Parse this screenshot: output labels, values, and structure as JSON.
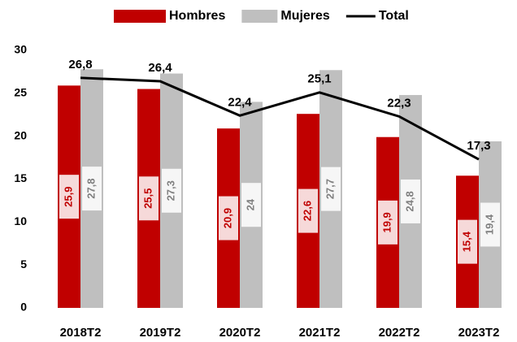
{
  "chart_data": {
    "type": "bar",
    "categories": [
      "2018T2",
      "2019T2",
      "2020T2",
      "2021T2",
      "2022T2",
      "2023T2"
    ],
    "series": [
      {
        "name": "Hombres",
        "type": "bar",
        "color": "#c00000",
        "label_color": "#c00000",
        "values": [
          25.9,
          25.5,
          20.9,
          22.6,
          19.9,
          15.4
        ],
        "value_labels": [
          "25,9",
          "25,5",
          "20,9",
          "22,6",
          "19,9",
          "15,4"
        ]
      },
      {
        "name": "Mujeres",
        "type": "bar",
        "color": "#bfbfbf",
        "label_color": "#808080",
        "values": [
          27.8,
          27.3,
          24,
          27.7,
          24.8,
          19.4
        ],
        "value_labels": [
          "27,8",
          "27,3",
          "24",
          "27,7",
          "24,8",
          "19,4"
        ]
      },
      {
        "name": "Total",
        "type": "line",
        "color": "#000000",
        "label_color": "#000000",
        "values": [
          26.8,
          26.4,
          22.4,
          25.1,
          22.3,
          17.3
        ],
        "value_labels": [
          "26,8",
          "26,4",
          "22,4",
          "25,1",
          "22,3",
          "17,3"
        ]
      }
    ],
    "ylim": [
      0,
      30
    ],
    "yticks": [
      0,
      5,
      10,
      15,
      20,
      25,
      30
    ],
    "grid": false,
    "legend": "top"
  }
}
